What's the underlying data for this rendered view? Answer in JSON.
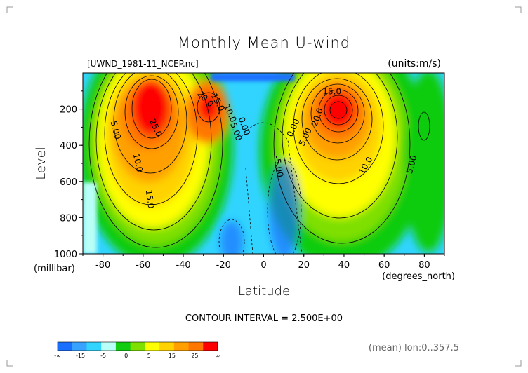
{
  "chart_data": {
    "type": "contour",
    "title": "Monthly Mean U-wind",
    "subtitle_left": "[UWND_1981-11_NCEP.nc]",
    "subtitle_right": "(units:m/s)",
    "xlabel": "Latitude",
    "xunit": "(degrees_north)",
    "ylabel": "Level",
    "yunit": "(millibar)",
    "xlim": [
      -90,
      90
    ],
    "ylim": [
      1000,
      0
    ],
    "x_ticks": [
      -80,
      -60,
      -40,
      -20,
      0,
      20,
      40,
      60,
      80
    ],
    "y_ticks": [
      200,
      400,
      600,
      800,
      1000
    ],
    "contour_interval_text": "CONTOUR INTERVAL = 2.500E+00",
    "footer_note": "(mean) lon:0..357.5",
    "contour_labels": [
      {
        "text": "5.00",
        "x": -75,
        "y": 320,
        "angle": 75
      },
      {
        "text": "10.0",
        "x": -64,
        "y": 500,
        "angle": 78
      },
      {
        "text": "15.0",
        "x": -58,
        "y": 700,
        "angle": 82
      },
      {
        "text": "25.0",
        "x": -55,
        "y": 310,
        "angle": 65
      },
      {
        "text": "20.0",
        "x": -30,
        "y": 155,
        "angle": 45
      },
      {
        "text": "15.0",
        "x": -24,
        "y": 170,
        "angle": 62
      },
      {
        "text": "10.0",
        "x": -18,
        "y": 230,
        "angle": 65
      },
      {
        "text": "5.00",
        "x": -15,
        "y": 330,
        "angle": 70
      },
      {
        "text": "0.00",
        "x": -11,
        "y": 300,
        "angle": 70
      },
      {
        "text": "-5.00",
        "x": 6,
        "y": 520,
        "angle": 80
      },
      {
        "text": "0.00",
        "x": 16,
        "y": 310,
        "angle": -65
      },
      {
        "text": "5.00",
        "x": 22,
        "y": 360,
        "angle": -65
      },
      {
        "text": "15.0",
        "x": 34,
        "y": 118,
        "angle": 0
      },
      {
        "text": "20.0",
        "x": 28,
        "y": 250,
        "angle": -70
      },
      {
        "text": "10.0",
        "x": 52,
        "y": 520,
        "angle": -60
      },
      {
        "text": "5.00",
        "x": 75,
        "y": 510,
        "angle": -75
      }
    ],
    "colorbar": {
      "labels": [
        "-∞",
        "-15",
        "-5",
        "0",
        "5",
        "15",
        "25",
        "∞"
      ],
      "colors": [
        "#1a6fff",
        "#38a3ff",
        "#31d4ff",
        "#b8fff7",
        "#11cc11",
        "#7fe000",
        "#ffff00",
        "#ffd200",
        "#ffa000",
        "#ff7700",
        "#ff0000"
      ]
    }
  }
}
